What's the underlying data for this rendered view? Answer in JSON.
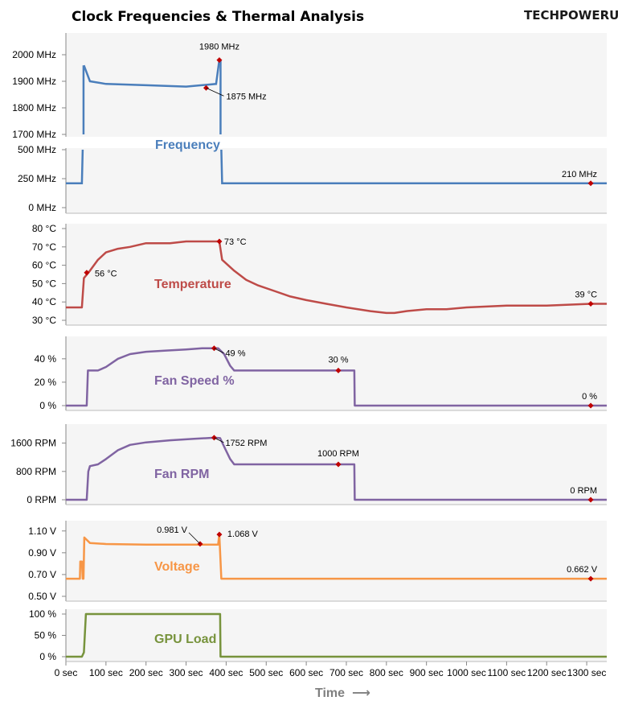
{
  "title": "Clock Frequencies & Thermal Analysis",
  "logo": "TECHPOWERUP",
  "colors": {
    "frequency": "#4a7ebb",
    "temperature": "#be4b48",
    "fan_speed": "#8064a2",
    "fan_rpm": "#8064a2",
    "voltage": "#f79646",
    "gpu_load": "#77933c",
    "marker": "#c00000",
    "panel_bg": "#f5f5f5"
  },
  "chart_data": [
    {
      "type": "line",
      "panel": "frequency",
      "label": "Frequency",
      "x_range": [
        0,
        1350
      ],
      "y_ticks_top": [
        "1700 MHz",
        "1800 MHz",
        "1900 MHz",
        "2000 MHz"
      ],
      "y_ticks_bottom": [
        "0 MHz",
        "250 MHz",
        "500 MHz"
      ],
      "points": [
        [
          0,
          210
        ],
        [
          40,
          210
        ],
        [
          45,
          1960
        ],
        [
          60,
          1900
        ],
        [
          100,
          1890
        ],
        [
          200,
          1885
        ],
        [
          300,
          1880
        ],
        [
          375,
          1890
        ],
        [
          383,
          1980
        ],
        [
          390,
          210
        ],
        [
          1350,
          210
        ]
      ],
      "annotations": [
        {
          "x": 383,
          "y": 1980,
          "text": "1980 MHz"
        },
        {
          "x": 350,
          "y": 1875,
          "text": "1875 MHz"
        },
        {
          "x": 1310,
          "y": 210,
          "text": "210 MHz"
        }
      ]
    },
    {
      "type": "line",
      "panel": "temperature",
      "label": "Temperature",
      "x_range": [
        0,
        1350
      ],
      "y_ticks": [
        "30 °C",
        "40 °C",
        "50 °C",
        "60 °C",
        "70 °C",
        "80 °C"
      ],
      "y_range": [
        30,
        80
      ],
      "points": [
        [
          0,
          37
        ],
        [
          40,
          37
        ],
        [
          45,
          53
        ],
        [
          60,
          57
        ],
        [
          80,
          63
        ],
        [
          100,
          67
        ],
        [
          130,
          69
        ],
        [
          160,
          70
        ],
        [
          200,
          72
        ],
        [
          260,
          72
        ],
        [
          300,
          73
        ],
        [
          380,
          73
        ],
        [
          383,
          73
        ],
        [
          390,
          63
        ],
        [
          420,
          57
        ],
        [
          450,
          52
        ],
        [
          480,
          49
        ],
        [
          520,
          46
        ],
        [
          560,
          43
        ],
        [
          600,
          41
        ],
        [
          650,
          39
        ],
        [
          700,
          37
        ],
        [
          760,
          35
        ],
        [
          800,
          34
        ],
        [
          820,
          34
        ],
        [
          850,
          35
        ],
        [
          900,
          36
        ],
        [
          950,
          36
        ],
        [
          1000,
          37
        ],
        [
          1100,
          38
        ],
        [
          1200,
          38
        ],
        [
          1310,
          39
        ],
        [
          1350,
          39
        ]
      ],
      "annotations": [
        {
          "x": 52,
          "y": 56,
          "text": "56 °C"
        },
        {
          "x": 383,
          "y": 73,
          "text": "73 °C"
        },
        {
          "x": 1310,
          "y": 39,
          "text": "39 °C"
        }
      ]
    },
    {
      "type": "line",
      "panel": "fan_speed",
      "label": "Fan Speed %",
      "x_range": [
        0,
        1350
      ],
      "y_ticks": [
        "0 %",
        "20 %",
        "40 %"
      ],
      "y_range": [
        0,
        55
      ],
      "points": [
        [
          0,
          0
        ],
        [
          52,
          0
        ],
        [
          55,
          30
        ],
        [
          80,
          30
        ],
        [
          100,
          33
        ],
        [
          130,
          40
        ],
        [
          160,
          44
        ],
        [
          200,
          46
        ],
        [
          250,
          47
        ],
        [
          300,
          48
        ],
        [
          340,
          49
        ],
        [
          365,
          49
        ],
        [
          380,
          49
        ],
        [
          395,
          44
        ],
        [
          410,
          34
        ],
        [
          420,
          30
        ],
        [
          690,
          30
        ],
        [
          700,
          30
        ],
        [
          720,
          30
        ],
        [
          721,
          0
        ],
        [
          1350,
          0
        ]
      ],
      "annotations": [
        {
          "x": 370,
          "y": 49,
          "text": "49 %"
        },
        {
          "x": 680,
          "y": 30,
          "text": "30 %"
        },
        {
          "x": 1310,
          "y": 0,
          "text": "0 %"
        }
      ]
    },
    {
      "type": "line",
      "panel": "fan_rpm",
      "label": "Fan RPM",
      "x_range": [
        0,
        1350
      ],
      "y_ticks": [
        "0 RPM",
        "800 RPM",
        "1600 RPM"
      ],
      "y_range": [
        0,
        2000
      ],
      "points": [
        [
          0,
          0
        ],
        [
          52,
          0
        ],
        [
          56,
          800
        ],
        [
          60,
          950
        ],
        [
          80,
          1000
        ],
        [
          100,
          1150
        ],
        [
          130,
          1400
        ],
        [
          160,
          1550
        ],
        [
          200,
          1620
        ],
        [
          260,
          1680
        ],
        [
          320,
          1720
        ],
        [
          370,
          1752
        ],
        [
          385,
          1740
        ],
        [
          395,
          1500
        ],
        [
          410,
          1150
        ],
        [
          420,
          1000
        ],
        [
          690,
          1000
        ],
        [
          720,
          1000
        ],
        [
          721,
          0
        ],
        [
          1350,
          0
        ]
      ],
      "annotations": [
        {
          "x": 370,
          "y": 1752,
          "text": "1752 RPM"
        },
        {
          "x": 680,
          "y": 1000,
          "text": "1000 RPM"
        },
        {
          "x": 1310,
          "y": 0,
          "text": "0 RPM"
        }
      ]
    },
    {
      "type": "line",
      "panel": "voltage",
      "label": "Voltage",
      "x_range": [
        0,
        1350
      ],
      "y_ticks": [
        "0.50 V",
        "0.70 V",
        "0.90 V",
        "1.10 V"
      ],
      "y_range": [
        0.5,
        1.15
      ],
      "points": [
        [
          0,
          0.662
        ],
        [
          35,
          0.662
        ],
        [
          36,
          0.82
        ],
        [
          40,
          0.82
        ],
        [
          42,
          0.662
        ],
        [
          44,
          0.662
        ],
        [
          46,
          1.04
        ],
        [
          60,
          0.99
        ],
        [
          100,
          0.98
        ],
        [
          200,
          0.975
        ],
        [
          300,
          0.975
        ],
        [
          380,
          0.975
        ],
        [
          383,
          1.068
        ],
        [
          388,
          0.662
        ],
        [
          1350,
          0.662
        ]
      ],
      "annotations": [
        {
          "x": 335,
          "y": 0.981,
          "text": "0.981 V"
        },
        {
          "x": 383,
          "y": 1.068,
          "text": "1.068 V"
        },
        {
          "x": 1310,
          "y": 0.662,
          "text": "0.662 V"
        }
      ]
    },
    {
      "type": "line",
      "panel": "gpu_load",
      "label": "GPU Load",
      "x_range": [
        0,
        1350
      ],
      "y_ticks": [
        "0 %",
        "50 %",
        "100 %"
      ],
      "y_range": [
        0,
        100
      ],
      "points": [
        [
          0,
          0
        ],
        [
          40,
          0
        ],
        [
          45,
          10
        ],
        [
          50,
          100
        ],
        [
          385,
          100
        ],
        [
          386,
          0
        ],
        [
          1350,
          0
        ]
      ],
      "annotations": []
    }
  ],
  "x_axis": {
    "ticks": [
      "0 sec",
      "100 sec",
      "200 sec",
      "300 sec",
      "400 sec",
      "500 sec",
      "600 sec",
      "700 sec",
      "800 sec",
      "900 sec",
      "1000 sec",
      "1100 sec",
      "1200 sec",
      "1300 sec"
    ],
    "label": "Time",
    "arrow": "⟶"
  }
}
